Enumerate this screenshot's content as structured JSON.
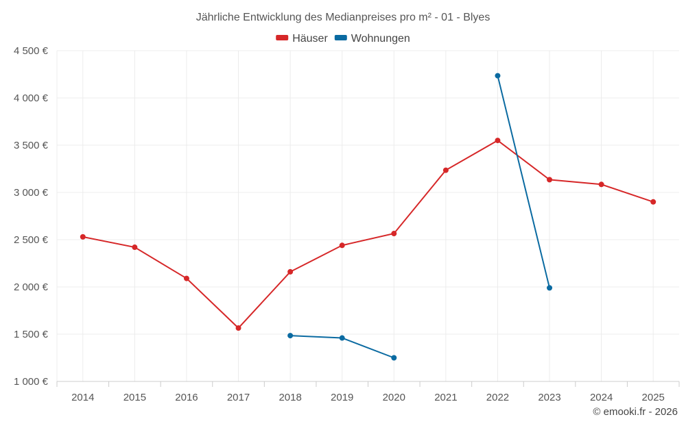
{
  "chart_data": {
    "type": "line",
    "title": "Jährliche Entwicklung des Medianpreises pro m² - 01 - Blyes",
    "categories": [
      "2014",
      "2015",
      "2016",
      "2017",
      "2018",
      "2019",
      "2020",
      "2021",
      "2022",
      "2023",
      "2024",
      "2025"
    ],
    "series": [
      {
        "name": "Häuser",
        "color": "#d62728",
        "values": [
          2530,
          2420,
          2090,
          1565,
          2160,
          2440,
          2565,
          3235,
          3550,
          3135,
          3085,
          2900
        ]
      },
      {
        "name": "Wohnungen",
        "color": "#0a6aa1",
        "values": [
          null,
          null,
          null,
          null,
          1485,
          1460,
          1250,
          null,
          4235,
          1990,
          null,
          null
        ]
      }
    ],
    "ylim": [
      1000,
      4500
    ],
    "yticks": [
      1000,
      1500,
      2000,
      2500,
      3000,
      3500,
      4000,
      4500
    ],
    "ytick_labels": [
      "1 000 €",
      "1 500 €",
      "2 000 €",
      "2 500 €",
      "3 000 €",
      "3 500 €",
      "4 000 €",
      "4 500 €"
    ],
    "xlabel": "",
    "ylabel": "",
    "grid": true,
    "legend": "top-center"
  },
  "credit": "© emooki.fr - 2026"
}
